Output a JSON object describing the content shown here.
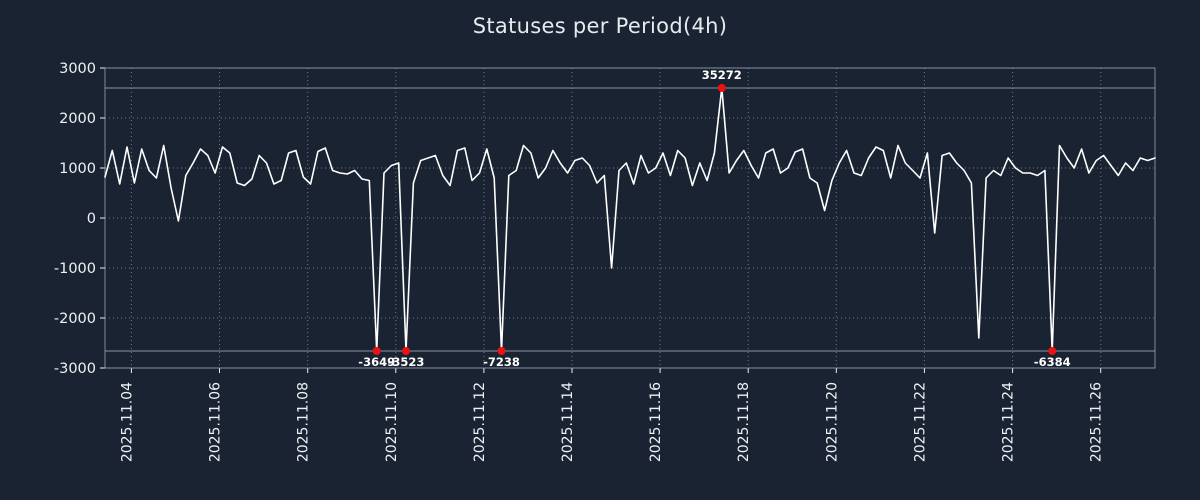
{
  "title": "Statuses per Period(4h)",
  "colors": {
    "background": "#192331",
    "line": "#ffffff",
    "marker": "#ee1111",
    "grid": "rgba(215,225,238,0.45)",
    "clip_line": "#8296a8",
    "border": "rgba(160,178,196,0.75)",
    "text": "#eef1f5",
    "label": "#ffffff"
  },
  "chart_data": {
    "type": "line",
    "title": "Statuses per Period(4h)",
    "xlabel": "",
    "ylabel": "",
    "ylim": [
      -3000,
      3000
    ],
    "y_ticks": [
      -3000,
      -2000,
      -1000,
      0,
      1000,
      2000,
      3000
    ],
    "x_start_day": 3.4,
    "x_step_days": 0.1666666667,
    "x_tick_days": [
      4,
      6,
      8,
      10,
      12,
      14,
      16,
      18,
      20,
      22,
      24,
      26
    ],
    "x_tick_labels": [
      "2025.11.04",
      "2025.11.06",
      "2025.11.08",
      "2025.11.10",
      "2025.11.12",
      "2025.11.14",
      "2025.11.16",
      "2025.11.18",
      "2025.11.20",
      "2025.11.22",
      "2025.11.24",
      "2025.11.26"
    ],
    "clip_hi": 2600,
    "clip_lo": -2660,
    "grid": true,
    "legend": false,
    "extreme_labels": [
      "-3649",
      "-3523",
      "-7238",
      "35272",
      "-6384"
    ],
    "values": [
      820,
      1350,
      680,
      1420,
      700,
      1380,
      950,
      800,
      1450,
      600,
      -60,
      850,
      1100,
      1380,
      1250,
      900,
      1420,
      1300,
      700,
      650,
      780,
      1250,
      1100,
      680,
      750,
      1300,
      1350,
      820,
      680,
      1330,
      1400,
      950,
      900,
      880,
      950,
      780,
      750,
      -3649,
      900,
      1050,
      1100,
      -3523,
      700,
      1150,
      1200,
      1250,
      850,
      650,
      1350,
      1400,
      750,
      900,
      1380,
      800,
      -7238,
      850,
      950,
      1450,
      1300,
      800,
      1000,
      1350,
      1100,
      900,
      1150,
      1200,
      1050,
      700,
      850,
      -1000,
      950,
      1100,
      680,
      1250,
      900,
      1000,
      1300,
      850,
      1350,
      1200,
      650,
      1100,
      750,
      1300,
      35272,
      900,
      1150,
      1350,
      1050,
      800,
      1300,
      1380,
      900,
      1000,
      1320,
      1380,
      800,
      700,
      150,
      750,
      1100,
      1350,
      900,
      850,
      1200,
      1420,
      1350,
      800,
      1450,
      1100,
      950,
      800,
      1300,
      -300,
      1250,
      1300,
      1100,
      950,
      700,
      -2400,
      800,
      950,
      850,
      1200,
      1000,
      900,
      900,
      850,
      950,
      -6384,
      1450,
      1200,
      1000,
      1380,
      900,
      1150,
      1250,
      1050,
      850,
      1100,
      950,
      1200,
      1150,
      1200
    ]
  }
}
